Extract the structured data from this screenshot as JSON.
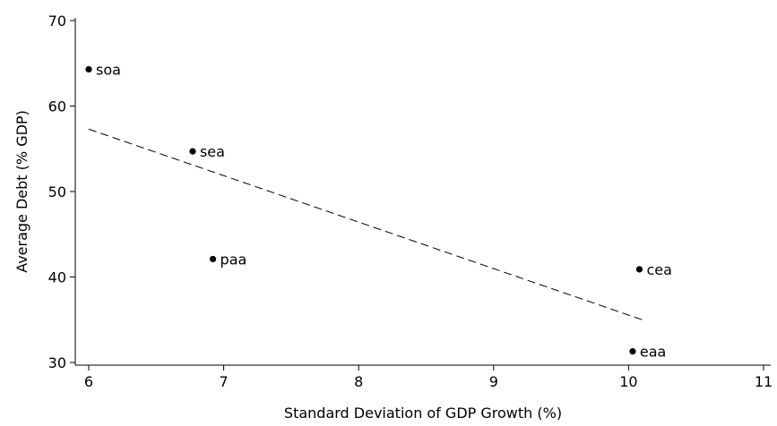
{
  "chart_data": {
    "type": "scatter",
    "title": "",
    "xlabel": "Standard Deviation of GDP Growth (%)",
    "ylabel": "Average Debt (% GDP)",
    "xlim": [
      6,
      11
    ],
    "ylim": [
      30,
      70
    ],
    "xticks": [
      "6",
      "7",
      "8",
      "9",
      "10",
      "11"
    ],
    "yticks": [
      "30",
      "40",
      "50",
      "60",
      "70"
    ],
    "grid": false,
    "legend": "none",
    "points": [
      {
        "label": "soa",
        "x": 6.0,
        "y": 64.3
      },
      {
        "label": "sea",
        "x": 6.77,
        "y": 54.7
      },
      {
        "label": "paa",
        "x": 6.92,
        "y": 42.1
      },
      {
        "label": "cea",
        "x": 10.08,
        "y": 40.9
      },
      {
        "label": "eaa",
        "x": 10.03,
        "y": 31.3
      }
    ],
    "fit_line": {
      "style": "dashed",
      "x": [
        6.0,
        10.1
      ],
      "y": [
        57.3,
        35.0
      ]
    }
  }
}
